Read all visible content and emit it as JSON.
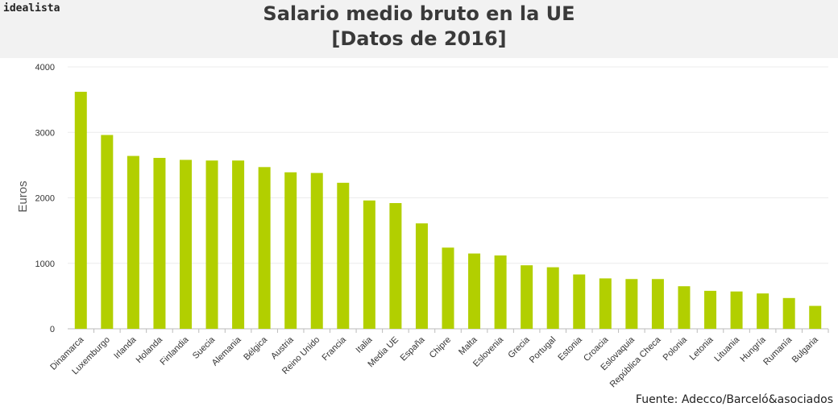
{
  "brand": "idealista",
  "source": "Fuente: Adecco/Barceló&asociados",
  "colors": {
    "bar": "#b2cf00",
    "grid": "#ececec",
    "axis_text": "#333333"
  },
  "chart_data": {
    "type": "bar",
    "title": "Salario medio bruto en la UE",
    "subtitle": "[Datos de 2016]",
    "xlabel": "",
    "ylabel": "Euros",
    "ylim": [
      0,
      4000
    ],
    "yticks": [
      0,
      1000,
      2000,
      3000,
      4000
    ],
    "grid": true,
    "categories": [
      "Dinamarca",
      "Luxemburgo",
      "Irlanda",
      "Holanda",
      "Finlandia",
      "Suecia",
      "Alemania",
      "Bélgica",
      "Austria",
      "Reino Unido",
      "Francia",
      "Italia",
      "Media UE",
      "España",
      "Chipre",
      "Malta",
      "Eslovenia",
      "Grecia",
      "Portugal",
      "Estonia",
      "Croacia",
      "Eslovaquia",
      "República Checa",
      "Polonia",
      "Letonia",
      "Lituania",
      "Hungría",
      "Rumanía",
      "Bulgaria"
    ],
    "values": [
      3620,
      2960,
      2640,
      2610,
      2580,
      2570,
      2570,
      2470,
      2390,
      2380,
      2230,
      1960,
      1920,
      1610,
      1240,
      1150,
      1120,
      970,
      940,
      830,
      770,
      760,
      760,
      650,
      580,
      570,
      540,
      470,
      350
    ]
  }
}
